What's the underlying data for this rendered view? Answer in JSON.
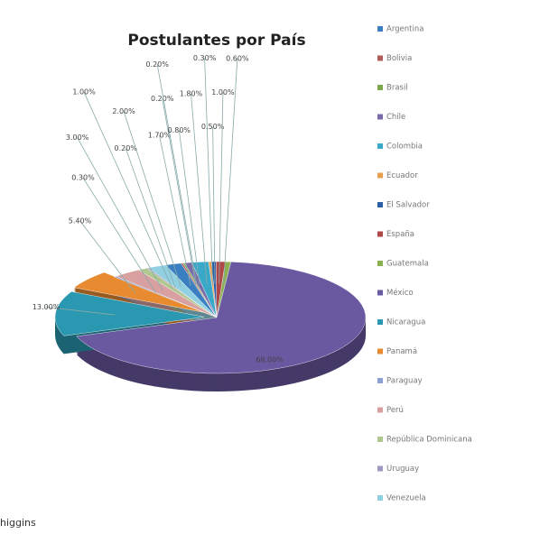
{
  "chart_data": {
    "type": "pie3d",
    "title": "Postulantes por País",
    "categories": [
      "Argentina",
      "Bolivia",
      "Brasil",
      "Chile",
      "Colombia",
      "Ecuador",
      "El Salvador",
      "España",
      "Guatemala",
      "México",
      "Nicaragua",
      "Panamá",
      "Paraguay",
      "Perú",
      "República Dominicana",
      "Uruguay",
      "Venezuela"
    ],
    "values": [
      1.7,
      0.2,
      0.2,
      0.8,
      1.8,
      0.3,
      0.5,
      1.0,
      0.6,
      68.0,
      13.0,
      5.4,
      0.3,
      3.0,
      1.0,
      0.2,
      2.0
    ],
    "value_labels": [
      "1.70%",
      "0.20%",
      "0.20%",
      "0.80%",
      "1.80%",
      "0.30%",
      "0.50%",
      "1.00%",
      "0.60%",
      "68.00%",
      "13.00%",
      "5.40%",
      "0.30%",
      "3.00%",
      "1.00%",
      "0.20%",
      "2.00%"
    ],
    "colors": [
      "#3a7fc1",
      "#b05a5a",
      "#7aa84a",
      "#7a6aa8",
      "#3aa8c8",
      "#e8a050",
      "#2a5fa8",
      "#b04848",
      "#8ab050",
      "#6a58a0",
      "#2a98b0",
      "#e88a30",
      "#8aa0d0",
      "#d8a0a0",
      "#b0c890",
      "#a098c0",
      "#90d0e0"
    ],
    "legend": "right",
    "footer_text": "higgins"
  }
}
